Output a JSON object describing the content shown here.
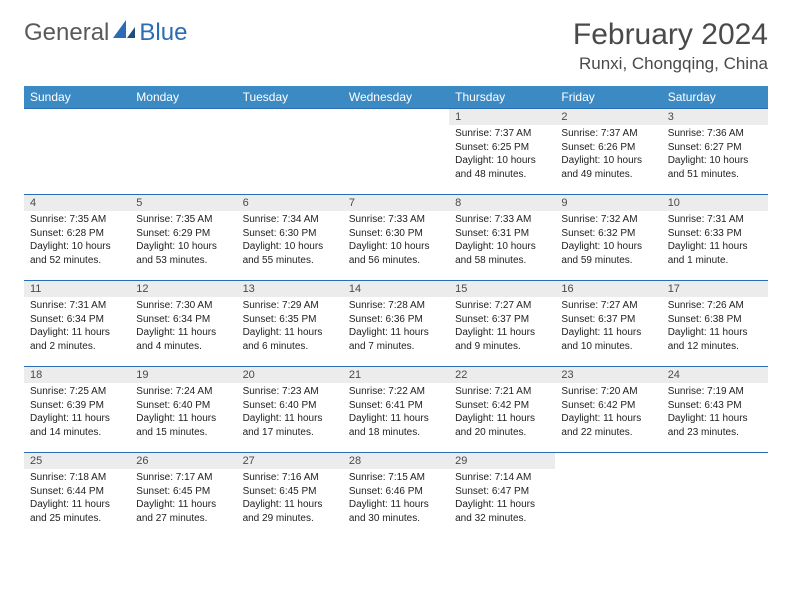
{
  "logo": {
    "general": "General",
    "blue": "Blue"
  },
  "header": {
    "title": "February 2024",
    "location": "Runxi, Chongqing, China"
  },
  "colors": {
    "header_bg": "#3b8ac4",
    "header_text": "#ffffff",
    "border": "#2a6db5",
    "daynum_bg": "#ececec",
    "text": "#222222",
    "logo_gray": "#5a5a5a",
    "logo_blue": "#2a6db5"
  },
  "columns": [
    "Sunday",
    "Monday",
    "Tuesday",
    "Wednesday",
    "Thursday",
    "Friday",
    "Saturday"
  ],
  "weeks": [
    [
      null,
      null,
      null,
      null,
      {
        "n": "1",
        "sr": "7:37 AM",
        "ss": "6:25 PM",
        "dl": "10 hours and 48 minutes."
      },
      {
        "n": "2",
        "sr": "7:37 AM",
        "ss": "6:26 PM",
        "dl": "10 hours and 49 minutes."
      },
      {
        "n": "3",
        "sr": "7:36 AM",
        "ss": "6:27 PM",
        "dl": "10 hours and 51 minutes."
      }
    ],
    [
      {
        "n": "4",
        "sr": "7:35 AM",
        "ss": "6:28 PM",
        "dl": "10 hours and 52 minutes."
      },
      {
        "n": "5",
        "sr": "7:35 AM",
        "ss": "6:29 PM",
        "dl": "10 hours and 53 minutes."
      },
      {
        "n": "6",
        "sr": "7:34 AM",
        "ss": "6:30 PM",
        "dl": "10 hours and 55 minutes."
      },
      {
        "n": "7",
        "sr": "7:33 AM",
        "ss": "6:30 PM",
        "dl": "10 hours and 56 minutes."
      },
      {
        "n": "8",
        "sr": "7:33 AM",
        "ss": "6:31 PM",
        "dl": "10 hours and 58 minutes."
      },
      {
        "n": "9",
        "sr": "7:32 AM",
        "ss": "6:32 PM",
        "dl": "10 hours and 59 minutes."
      },
      {
        "n": "10",
        "sr": "7:31 AM",
        "ss": "6:33 PM",
        "dl": "11 hours and 1 minute."
      }
    ],
    [
      {
        "n": "11",
        "sr": "7:31 AM",
        "ss": "6:34 PM",
        "dl": "11 hours and 2 minutes."
      },
      {
        "n": "12",
        "sr": "7:30 AM",
        "ss": "6:34 PM",
        "dl": "11 hours and 4 minutes."
      },
      {
        "n": "13",
        "sr": "7:29 AM",
        "ss": "6:35 PM",
        "dl": "11 hours and 6 minutes."
      },
      {
        "n": "14",
        "sr": "7:28 AM",
        "ss": "6:36 PM",
        "dl": "11 hours and 7 minutes."
      },
      {
        "n": "15",
        "sr": "7:27 AM",
        "ss": "6:37 PM",
        "dl": "11 hours and 9 minutes."
      },
      {
        "n": "16",
        "sr": "7:27 AM",
        "ss": "6:37 PM",
        "dl": "11 hours and 10 minutes."
      },
      {
        "n": "17",
        "sr": "7:26 AM",
        "ss": "6:38 PM",
        "dl": "11 hours and 12 minutes."
      }
    ],
    [
      {
        "n": "18",
        "sr": "7:25 AM",
        "ss": "6:39 PM",
        "dl": "11 hours and 14 minutes."
      },
      {
        "n": "19",
        "sr": "7:24 AM",
        "ss": "6:40 PM",
        "dl": "11 hours and 15 minutes."
      },
      {
        "n": "20",
        "sr": "7:23 AM",
        "ss": "6:40 PM",
        "dl": "11 hours and 17 minutes."
      },
      {
        "n": "21",
        "sr": "7:22 AM",
        "ss": "6:41 PM",
        "dl": "11 hours and 18 minutes."
      },
      {
        "n": "22",
        "sr": "7:21 AM",
        "ss": "6:42 PM",
        "dl": "11 hours and 20 minutes."
      },
      {
        "n": "23",
        "sr": "7:20 AM",
        "ss": "6:42 PM",
        "dl": "11 hours and 22 minutes."
      },
      {
        "n": "24",
        "sr": "7:19 AM",
        "ss": "6:43 PM",
        "dl": "11 hours and 23 minutes."
      }
    ],
    [
      {
        "n": "25",
        "sr": "7:18 AM",
        "ss": "6:44 PM",
        "dl": "11 hours and 25 minutes."
      },
      {
        "n": "26",
        "sr": "7:17 AM",
        "ss": "6:45 PM",
        "dl": "11 hours and 27 minutes."
      },
      {
        "n": "27",
        "sr": "7:16 AM",
        "ss": "6:45 PM",
        "dl": "11 hours and 29 minutes."
      },
      {
        "n": "28",
        "sr": "7:15 AM",
        "ss": "6:46 PM",
        "dl": "11 hours and 30 minutes."
      },
      {
        "n": "29",
        "sr": "7:14 AM",
        "ss": "6:47 PM",
        "dl": "11 hours and 32 minutes."
      },
      null,
      null
    ]
  ],
  "labels": {
    "sunrise": "Sunrise:",
    "sunset": "Sunset:",
    "daylight": "Daylight:"
  }
}
